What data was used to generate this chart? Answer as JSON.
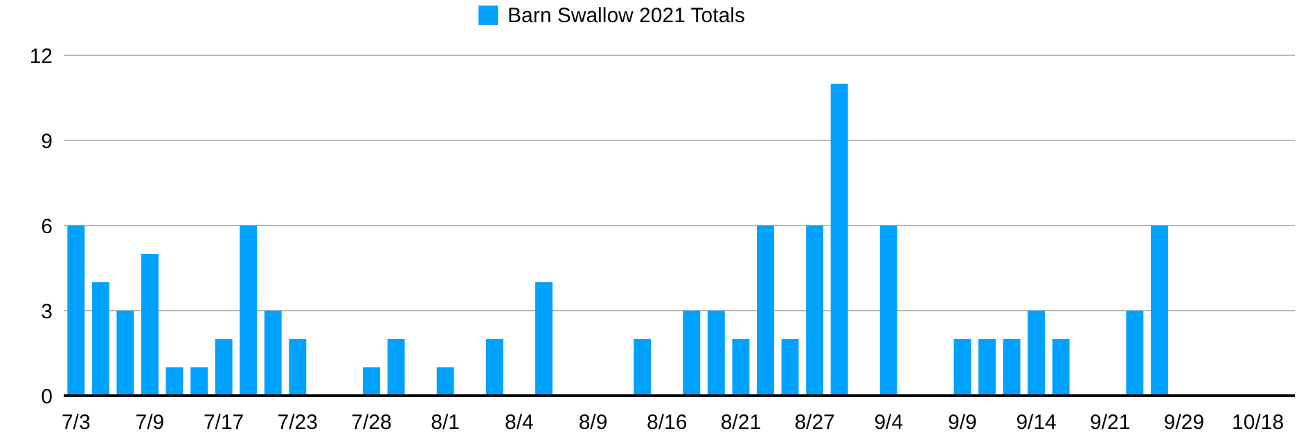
{
  "chart_data": {
    "type": "bar",
    "categories": [
      "7/3",
      null,
      null,
      "7/9",
      null,
      null,
      "7/17",
      null,
      null,
      "7/23",
      null,
      null,
      "7/28",
      null,
      null,
      "8/1",
      null,
      null,
      "8/4",
      null,
      null,
      "8/9",
      null,
      null,
      "8/16",
      null,
      null,
      "8/21",
      null,
      null,
      "8/27",
      null,
      null,
      "9/4",
      null,
      null,
      "9/9",
      null,
      null,
      "9/14",
      null,
      null,
      "9/21",
      null,
      null,
      "9/29",
      null,
      null,
      "10/18",
      null
    ],
    "series": [
      {
        "name": "Barn Swallow 2021 Totals",
        "color": "#00a2ff",
        "values": [
          6,
          4,
          3,
          5,
          1,
          1,
          2,
          6,
          3,
          2,
          0,
          0,
          1,
          2,
          0,
          1,
          0,
          2,
          0,
          4,
          0,
          0,
          0,
          2,
          0,
          3,
          3,
          2,
          6,
          2,
          6,
          11,
          0,
          6,
          0,
          0,
          2,
          2,
          2,
          3,
          2,
          0,
          0,
          3,
          6,
          0,
          0,
          0,
          0,
          0
        ]
      }
    ],
    "ylim": [
      0,
      12
    ],
    "yticks": [
      0,
      3,
      6,
      9,
      12
    ],
    "grid": "y",
    "legend": "top"
  }
}
